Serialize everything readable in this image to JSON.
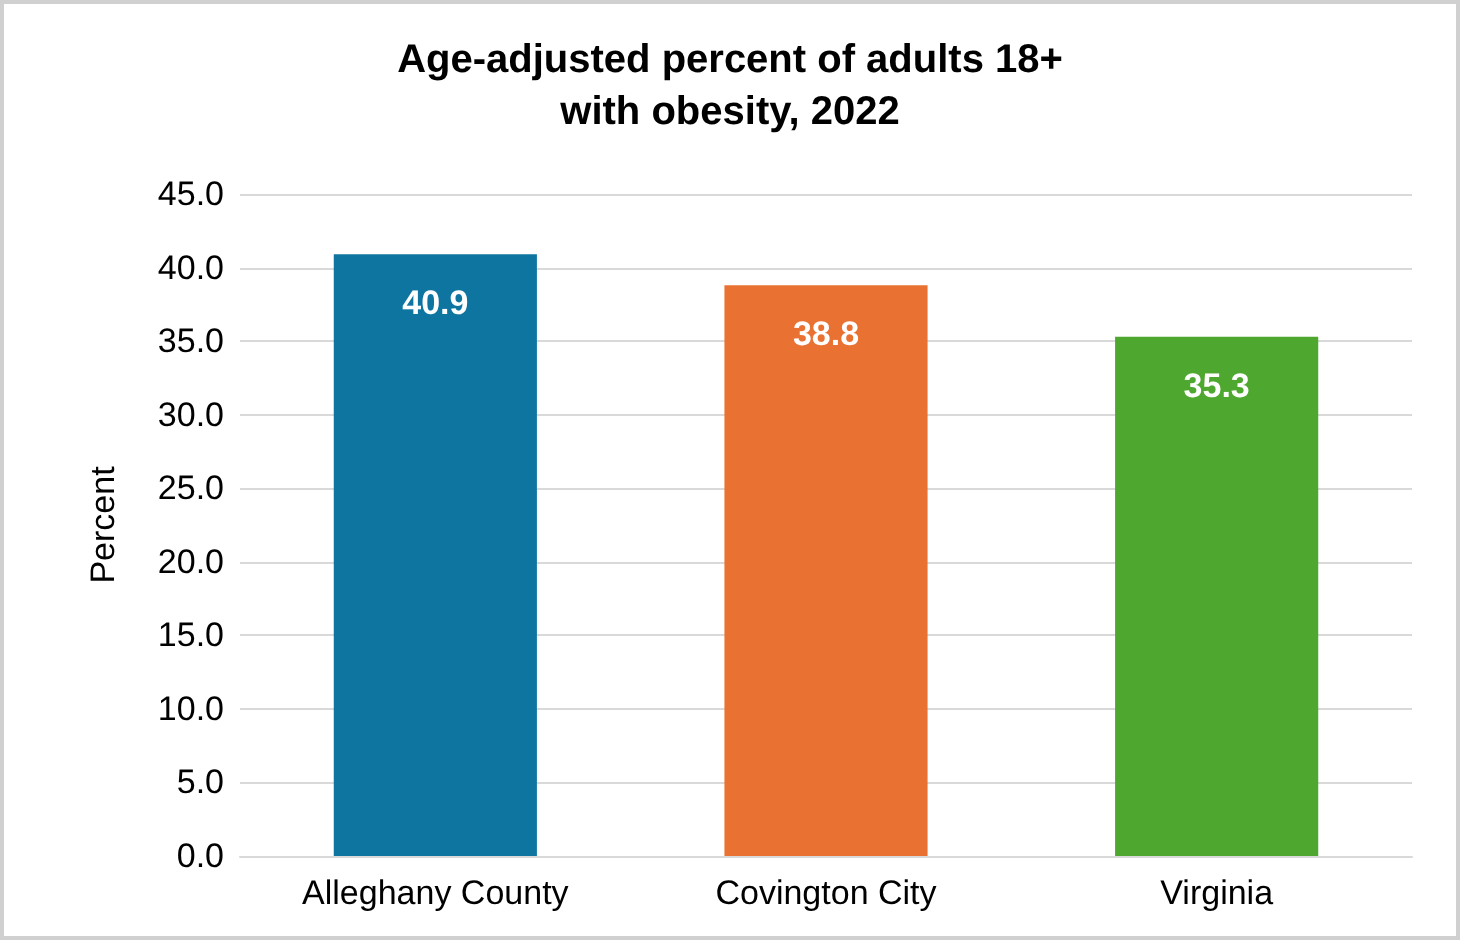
{
  "chart_data": {
    "type": "bar",
    "title": "Age-adjusted percent of adults 18+\nwith obesity, 2022",
    "ylabel": "Percent",
    "categories": [
      "Alleghany County",
      "Covington City",
      "Virginia"
    ],
    "values": [
      40.9,
      38.8,
      35.3
    ],
    "colors": [
      "#0e74a0",
      "#e97132",
      "#4ea72e"
    ],
    "ylim": [
      0,
      45
    ],
    "yticks": [
      {
        "value": 0,
        "label": "0.0"
      },
      {
        "value": 5,
        "label": "5.0"
      },
      {
        "value": 10,
        "label": "10.0"
      },
      {
        "value": 15,
        "label": "15.0"
      },
      {
        "value": 20,
        "label": "20.0"
      },
      {
        "value": 25,
        "label": "25.0"
      },
      {
        "value": 30,
        "label": "30.0"
      },
      {
        "value": 35,
        "label": "35.0"
      },
      {
        "value": 40,
        "label": "40.0"
      },
      {
        "value": 45,
        "label": "45.0"
      }
    ],
    "grid": "y",
    "data_labels": true
  }
}
